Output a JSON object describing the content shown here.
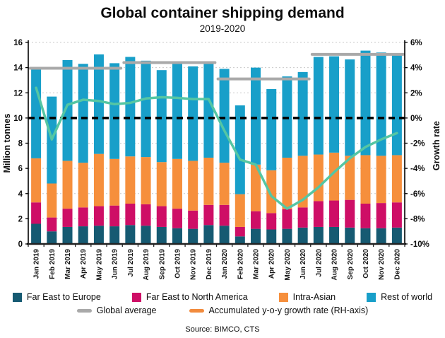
{
  "chart_data": {
    "type": "bar",
    "title": "Global container shipping demand",
    "subtitle": "2019-2020",
    "source": "Source: BIMCO, CTS",
    "ylabel_left": "Million tonnes",
    "ylabel_right": "Growth rate",
    "ylim_left": [
      0,
      16
    ],
    "ylim_right": [
      -10,
      6
    ],
    "y_ticks_left": [
      0,
      2,
      4,
      6,
      8,
      10,
      12,
      14,
      16
    ],
    "y_ticks_right": [
      "6%",
      "4%",
      "2%",
      "0%",
      "-2%",
      "-4%",
      "-6%",
      "-8%",
      "-10%"
    ],
    "zero_line_left_value": 10,
    "grid": true,
    "legend_position": "bottom",
    "categories": [
      "Jan 2019",
      "Feb 2019",
      "Mar 2019",
      "Apr 2019",
      "May 2019",
      "Jun 2019",
      "Jul 2019",
      "Aug 2019",
      "Sep 2019",
      "Oct 2019",
      "Nov 2019",
      "Dec 2019",
      "Jan 2020",
      "Feb 2020",
      "Mar 2020",
      "Apr 2020",
      "May 2020",
      "Jun 2020",
      "Jul 2020",
      "Aug 2020",
      "Sep 2020",
      "Oct 2020",
      "Nov 2020",
      "Dec 2020"
    ],
    "series": [
      {
        "name": "Far East to Europe",
        "color": "#165A72",
        "values": [
          1.6,
          1.0,
          1.35,
          1.4,
          1.45,
          1.4,
          1.5,
          1.45,
          1.35,
          1.25,
          1.2,
          1.5,
          1.45,
          0.6,
          1.2,
          1.15,
          1.2,
          1.3,
          1.35,
          1.35,
          1.3,
          1.25,
          1.25,
          1.3
        ]
      },
      {
        "name": "Far East to North America",
        "color": "#CE0E66",
        "values": [
          1.7,
          1.1,
          1.45,
          1.5,
          1.55,
          1.65,
          1.7,
          1.7,
          1.65,
          1.55,
          1.45,
          1.6,
          1.65,
          0.75,
          1.4,
          1.3,
          1.55,
          1.6,
          2.05,
          2.1,
          2.2,
          1.95,
          2.0,
          2.0
        ]
      },
      {
        "name": "Intra-Asian",
        "color": "#F68F3C",
        "values": [
          3.5,
          2.7,
          3.8,
          3.55,
          4.15,
          3.7,
          3.75,
          3.75,
          3.5,
          3.95,
          3.95,
          3.75,
          3.35,
          2.6,
          3.7,
          3.4,
          4.1,
          4.1,
          3.7,
          3.8,
          3.5,
          3.85,
          3.75,
          3.75
        ]
      },
      {
        "name": "Rest of world",
        "color": "#189FC9",
        "values": [
          7.2,
          6.9,
          8.0,
          7.85,
          7.9,
          7.6,
          7.9,
          7.65,
          7.3,
          7.55,
          7.5,
          7.65,
          7.45,
          7.05,
          7.7,
          6.45,
          6.45,
          6.65,
          7.75,
          7.65,
          7.65,
          8.3,
          8.2,
          8.05
        ]
      }
    ],
    "bar_totals": [
      14.0,
      11.7,
      14.6,
      14.3,
      15.05,
      14.35,
      14.85,
      14.55,
      13.8,
      14.3,
      14.1,
      14.5,
      13.9,
      11.0,
      14.0,
      12.3,
      13.3,
      13.65,
      14.85,
      14.9,
      14.65,
      15.35,
      15.2,
      15.1
    ],
    "global_average": {
      "name": "Global average",
      "color": "#A9A9A9",
      "segments": [
        {
          "from_index": 0,
          "to_index": 5,
          "value": 13.95
        },
        {
          "from_index": 6,
          "to_index": 11,
          "value": 14.4
        },
        {
          "from_index": 12,
          "to_index": 17,
          "value": 13.1
        },
        {
          "from_index": 18,
          "to_index": 23,
          "value": 15.05
        }
      ]
    },
    "growth_line": {
      "name": "Accumulated y-o-y growth rate (RH-axis)",
      "color": "#55C6A3",
      "legend_swatch_color": "#F28B3D",
      "values_pct": [
        2.4,
        -1.7,
        1.05,
        1.45,
        1.35,
        1.1,
        1.2,
        1.55,
        1.65,
        1.6,
        1.5,
        1.5,
        -1.0,
        -3.3,
        -3.7,
        -6.2,
        -7.2,
        -6.5,
        -5.5,
        -4.3,
        -3.2,
        -2.3,
        -1.7,
        -1.2
      ]
    },
    "zero_line_color": "#000000",
    "gridline_color": "#C9C9C9"
  }
}
